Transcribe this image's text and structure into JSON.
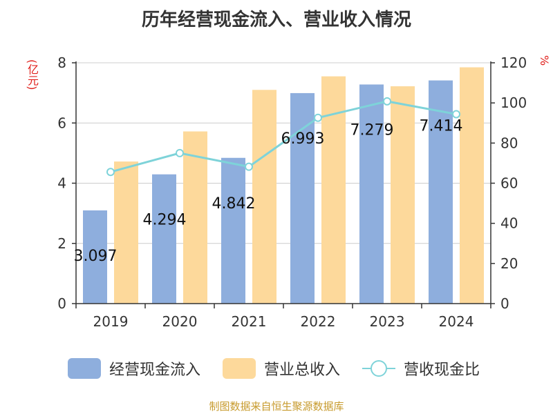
{
  "title": "历年经营现金流入、营业收入情况",
  "unit_left": "(亿元)",
  "unit_right": "%",
  "source": "制图数据来自恒生聚源数据库",
  "colors": {
    "cash": "#8eaedd",
    "revenue": "#fdd99b",
    "ratio": "#7ed3d9",
    "axis": "#333333",
    "grid": "#cccccc"
  },
  "legend": [
    {
      "label": "经营现金流入",
      "kind": "bar",
      "color": "#8eaedd"
    },
    {
      "label": "营业总收入",
      "kind": "bar",
      "color": "#fdd99b"
    },
    {
      "label": "营收现金比",
      "kind": "line",
      "color": "#7ed3d9"
    }
  ],
  "chart_data": {
    "type": "bar",
    "title": "历年经营现金流入、营业收入情况",
    "categories": [
      "2019",
      "2020",
      "2021",
      "2022",
      "2023",
      "2024"
    ],
    "series": [
      {
        "name": "经营现金流入",
        "axis": "left",
        "type": "bar",
        "values": [
          3.097,
          4.294,
          4.842,
          6.993,
          7.279,
          7.414
        ],
        "labels": [
          "3.097",
          "4.294",
          "4.842",
          "6.993",
          "7.279",
          "7.414"
        ]
      },
      {
        "name": "营业总收入",
        "axis": "left",
        "type": "bar",
        "values": [
          4.72,
          5.72,
          7.1,
          7.55,
          7.22,
          7.85
        ]
      },
      {
        "name": "营收现金比",
        "axis": "right",
        "type": "line",
        "values": [
          65.6,
          75.0,
          68.2,
          92.6,
          100.8,
          94.4
        ]
      }
    ],
    "left_axis": {
      "label": "(亿元)",
      "min": 0,
      "max": 8,
      "ticks": [
        "0",
        "2",
        "4",
        "6",
        "8"
      ]
    },
    "right_axis": {
      "label": "%",
      "min": 0,
      "max": 120,
      "ticks": [
        "0",
        "20",
        "40",
        "60",
        "80",
        "100",
        "120"
      ]
    },
    "grid": true,
    "legend_position": "bottom"
  }
}
